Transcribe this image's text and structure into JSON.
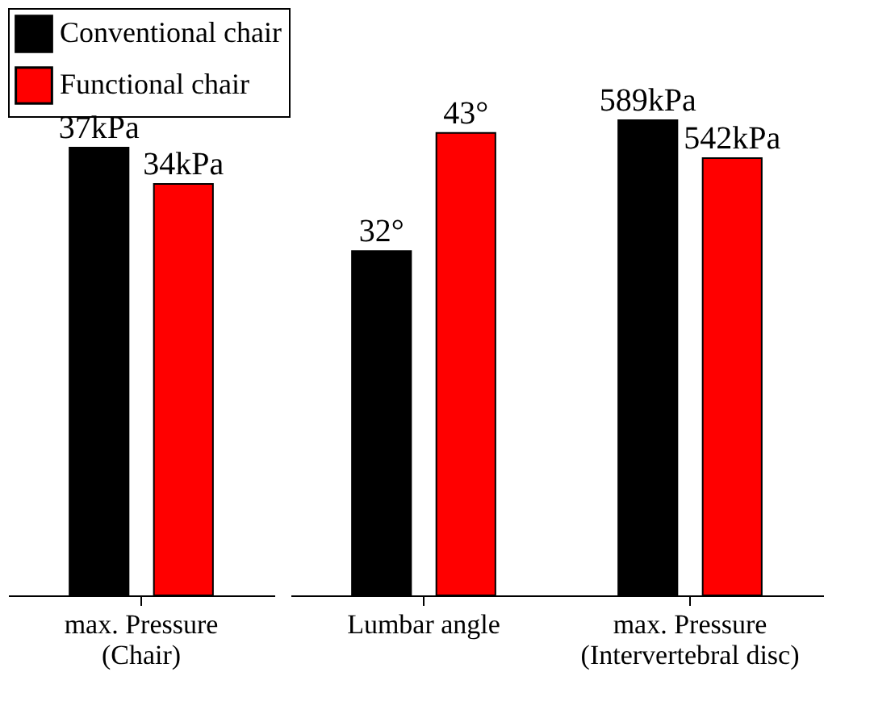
{
  "chart_data": [
    {
      "type": "bar",
      "categories": [
        "max. Pressure\n(Chair)"
      ],
      "tick_labels": "x",
      "legend": "top left",
      "series": [
        {
          "name": "Conventional chair",
          "color": "#000000",
          "values": [
            37
          ],
          "value_labels": [
            "37kPa"
          ]
        },
        {
          "name": "Functional chair",
          "color": "#ff0000",
          "values": [
            34
          ],
          "value_labels": [
            "34kPa"
          ]
        }
      ]
    },
    {
      "type": "bar",
      "categories": [
        "Lumbar angle"
      ],
      "tick_labels": "x",
      "series": [
        {
          "color": "#000000",
          "values": [
            32
          ],
          "value_labels": [
            "32°"
          ]
        },
        {
          "color": "#ff0000",
          "values": [
            43
          ],
          "value_labels": [
            "43°"
          ]
        }
      ]
    },
    {
      "type": "bar",
      "categories": [
        "max. Pressure\n(Intervertebral disc)"
      ],
      "tick_labels": "x",
      "series": [
        {
          "color": "#000000",
          "values": [
            589
          ],
          "value_labels": [
            "589kPa"
          ]
        },
        {
          "color": "#ff0000",
          "values": [
            542
          ],
          "value_labels": [
            "542kPa"
          ]
        }
      ]
    }
  ]
}
